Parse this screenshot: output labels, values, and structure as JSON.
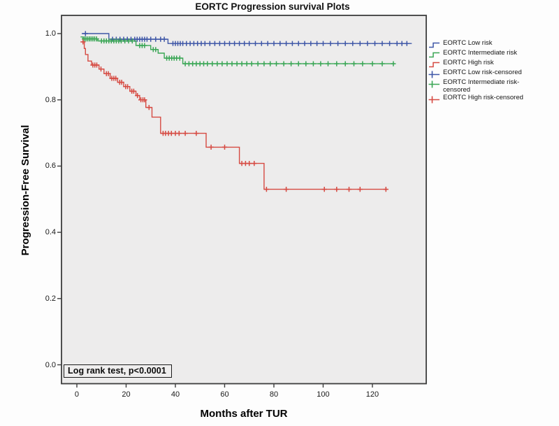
{
  "title": "EORTC Progression survival Plots",
  "y_axis": {
    "label": "Progression-Free Survival",
    "tick_labels": [
      "1.0",
      "0.8",
      "0.6",
      "0.4",
      "0.2",
      "0.0"
    ]
  },
  "x_axis": {
    "label": "Months after TUR",
    "tick_labels": [
      "0",
      "20",
      "40",
      "60",
      "80",
      "100",
      "120"
    ]
  },
  "annotation": {
    "text": "Log rank test, p<0.0001"
  },
  "colors": {
    "low_risk": "#3f57a7",
    "intermediate_risk": "#3aa655",
    "high_risk": "#d64a42",
    "plot_background": "#edecec",
    "frame": "#3d3d3d",
    "text": "#000000"
  },
  "legend": {
    "items": [
      {
        "label": "EORTC Low risk",
        "color": "#3f57a7",
        "glyph": "step-line"
      },
      {
        "label": "EORTC Intermediate risk",
        "color": "#3aa655",
        "glyph": "step-line"
      },
      {
        "label": "EORTC High risk",
        "color": "#d64a42",
        "glyph": "step-line"
      },
      {
        "label": "EORTC Low risk-censored",
        "color": "#3f57a7",
        "glyph": "censor-plus"
      },
      {
        "label": "EORTC Intermediate risk-censored",
        "color": "#3aa655",
        "glyph": "censor-plus"
      },
      {
        "label": "EORTC High risk-censored",
        "color": "#d64a42",
        "glyph": "censor-plus"
      }
    ]
  },
  "chart_data": {
    "type": "line",
    "subtype": "kaplan-meier-step",
    "title": "EORTC Progression survival Plots",
    "xlabel": "Months after TUR",
    "ylabel": "Progression-Free Survival",
    "xlim": [
      -6.24,
      141.86
    ],
    "ylim": [
      -0.057,
      1.055
    ],
    "x_ticks": [
      0,
      20,
      40,
      60,
      80,
      100,
      120
    ],
    "y_ticks": [
      1.0,
      0.8,
      0.6,
      0.4,
      0.2,
      0.0
    ],
    "grid": false,
    "legend_position": "right",
    "annotation": "Log rank test, p<0.0001",
    "series": [
      {
        "name": "EORTC Low risk",
        "color": "#3f57a7",
        "steps": [
          [
            2,
            1.0
          ],
          [
            13,
            1.0
          ],
          [
            13,
            0.983
          ],
          [
            37,
            0.983
          ],
          [
            37,
            0.97
          ],
          [
            136,
            0.97
          ]
        ],
        "censored": [
          [
            3.5,
            1.0
          ],
          [
            14.5,
            0.983
          ],
          [
            16,
            0.983
          ],
          [
            17.5,
            0.983
          ],
          [
            19,
            0.983
          ],
          [
            20.5,
            0.983
          ],
          [
            22,
            0.983
          ],
          [
            23.5,
            0.983
          ],
          [
            24.5,
            0.983
          ],
          [
            25.5,
            0.983
          ],
          [
            26.5,
            0.983
          ],
          [
            27.5,
            0.983
          ],
          [
            28.5,
            0.983
          ],
          [
            30,
            0.983
          ],
          [
            32,
            0.983
          ],
          [
            34,
            0.983
          ],
          [
            35.5,
            0.983
          ],
          [
            39,
            0.97
          ],
          [
            40,
            0.97
          ],
          [
            41,
            0.97
          ],
          [
            42,
            0.97
          ],
          [
            43,
            0.97
          ],
          [
            44.5,
            0.97
          ],
          [
            46,
            0.97
          ],
          [
            47.5,
            0.97
          ],
          [
            49,
            0.97
          ],
          [
            50.5,
            0.97
          ],
          [
            52,
            0.97
          ],
          [
            54,
            0.97
          ],
          [
            56,
            0.97
          ],
          [
            58,
            0.97
          ],
          [
            60,
            0.97
          ],
          [
            62,
            0.97
          ],
          [
            64,
            0.97
          ],
          [
            66,
            0.97
          ],
          [
            68,
            0.97
          ],
          [
            70,
            0.97
          ],
          [
            72.5,
            0.97
          ],
          [
            75,
            0.97
          ],
          [
            77.5,
            0.97
          ],
          [
            80,
            0.97
          ],
          [
            82.5,
            0.97
          ],
          [
            85,
            0.97
          ],
          [
            87.5,
            0.97
          ],
          [
            90,
            0.97
          ],
          [
            92.5,
            0.97
          ],
          [
            95,
            0.97
          ],
          [
            97.5,
            0.97
          ],
          [
            100,
            0.97
          ],
          [
            103,
            0.97
          ],
          [
            106,
            0.97
          ],
          [
            109,
            0.97
          ],
          [
            112,
            0.97
          ],
          [
            115,
            0.97
          ],
          [
            118,
            0.97
          ],
          [
            121,
            0.97
          ],
          [
            124,
            0.97
          ],
          [
            127,
            0.97
          ],
          [
            130,
            0.97
          ],
          [
            132,
            0.97
          ],
          [
            134,
            0.97
          ]
        ]
      },
      {
        "name": "EORTC Intermediate risk",
        "color": "#3aa655",
        "steps": [
          [
            1.5,
            0.99
          ],
          [
            2.5,
            0.99
          ],
          [
            2.5,
            0.984
          ],
          [
            8.5,
            0.984
          ],
          [
            8.5,
            0.978
          ],
          [
            24,
            0.978
          ],
          [
            24,
            0.964
          ],
          [
            30,
            0.964
          ],
          [
            30,
            0.952
          ],
          [
            33,
            0.952
          ],
          [
            33,
            0.941
          ],
          [
            35.5,
            0.941
          ],
          [
            35.5,
            0.926
          ],
          [
            43,
            0.926
          ],
          [
            43,
            0.909
          ],
          [
            129,
            0.909
          ]
        ],
        "censored": [
          [
            3,
            0.984
          ],
          [
            3.7,
            0.984
          ],
          [
            4.4,
            0.984
          ],
          [
            5.1,
            0.984
          ],
          [
            5.8,
            0.984
          ],
          [
            6.5,
            0.984
          ],
          [
            7.2,
            0.984
          ],
          [
            8,
            0.984
          ],
          [
            10,
            0.978
          ],
          [
            11,
            0.978
          ],
          [
            12,
            0.978
          ],
          [
            13,
            0.978
          ],
          [
            14,
            0.978
          ],
          [
            15,
            0.978
          ],
          [
            16,
            0.978
          ],
          [
            17,
            0.978
          ],
          [
            18,
            0.978
          ],
          [
            19.5,
            0.978
          ],
          [
            21,
            0.978
          ],
          [
            22.5,
            0.978
          ],
          [
            25.5,
            0.964
          ],
          [
            26.5,
            0.964
          ],
          [
            27.5,
            0.964
          ],
          [
            31,
            0.952
          ],
          [
            32,
            0.952
          ],
          [
            36.5,
            0.926
          ],
          [
            37.5,
            0.926
          ],
          [
            38.5,
            0.926
          ],
          [
            39.5,
            0.926
          ],
          [
            40.5,
            0.926
          ],
          [
            41.8,
            0.926
          ],
          [
            44,
            0.909
          ],
          [
            45.5,
            0.909
          ],
          [
            47,
            0.909
          ],
          [
            48.5,
            0.909
          ],
          [
            50,
            0.909
          ],
          [
            51.5,
            0.909
          ],
          [
            53,
            0.909
          ],
          [
            55,
            0.909
          ],
          [
            57,
            0.909
          ],
          [
            59,
            0.909
          ],
          [
            61,
            0.909
          ],
          [
            63,
            0.909
          ],
          [
            65,
            0.909
          ],
          [
            67,
            0.909
          ],
          [
            69,
            0.909
          ],
          [
            71,
            0.909
          ],
          [
            73.5,
            0.909
          ],
          [
            76,
            0.909
          ],
          [
            78.5,
            0.909
          ],
          [
            81,
            0.909
          ],
          [
            84,
            0.909
          ],
          [
            87,
            0.909
          ],
          [
            90,
            0.909
          ],
          [
            93,
            0.909
          ],
          [
            96,
            0.909
          ],
          [
            99,
            0.909
          ],
          [
            102,
            0.909
          ],
          [
            105.5,
            0.909
          ],
          [
            109,
            0.909
          ],
          [
            112.5,
            0.909
          ],
          [
            116,
            0.909
          ],
          [
            120,
            0.909
          ],
          [
            124,
            0.909
          ],
          [
            128.5,
            0.909
          ]
        ]
      },
      {
        "name": "EORTC High risk",
        "color": "#d64a42",
        "steps": [
          [
            2,
            0.975
          ],
          [
            3,
            0.975
          ],
          [
            3,
            0.955
          ],
          [
            3.5,
            0.955
          ],
          [
            3.5,
            0.937
          ],
          [
            4.5,
            0.937
          ],
          [
            4.5,
            0.917
          ],
          [
            6,
            0.917
          ],
          [
            6,
            0.905
          ],
          [
            9,
            0.905
          ],
          [
            9,
            0.893
          ],
          [
            11,
            0.893
          ],
          [
            11,
            0.879
          ],
          [
            13.5,
            0.879
          ],
          [
            13.5,
            0.865
          ],
          [
            16.5,
            0.865
          ],
          [
            16.5,
            0.853
          ],
          [
            19,
            0.853
          ],
          [
            19,
            0.84
          ],
          [
            21.5,
            0.84
          ],
          [
            21.5,
            0.826
          ],
          [
            24,
            0.826
          ],
          [
            24,
            0.813
          ],
          [
            25.5,
            0.813
          ],
          [
            25.5,
            0.8
          ],
          [
            28,
            0.8
          ],
          [
            28,
            0.777
          ],
          [
            30.5,
            0.777
          ],
          [
            30.5,
            0.748
          ],
          [
            34,
            0.748
          ],
          [
            34,
            0.699
          ],
          [
            52.5,
            0.699
          ],
          [
            52.5,
            0.657
          ],
          [
            66,
            0.657
          ],
          [
            66,
            0.608
          ],
          [
            76,
            0.608
          ],
          [
            76,
            0.53
          ],
          [
            126,
            0.53
          ]
        ],
        "censored": [
          [
            2.5,
            0.975
          ],
          [
            6.5,
            0.905
          ],
          [
            7.3,
            0.905
          ],
          [
            8.1,
            0.905
          ],
          [
            9.8,
            0.893
          ],
          [
            12,
            0.879
          ],
          [
            12.8,
            0.879
          ],
          [
            14.2,
            0.865
          ],
          [
            15,
            0.865
          ],
          [
            15.8,
            0.865
          ],
          [
            17.4,
            0.853
          ],
          [
            18.2,
            0.853
          ],
          [
            19.8,
            0.84
          ],
          [
            20.6,
            0.84
          ],
          [
            22.3,
            0.826
          ],
          [
            23.1,
            0.826
          ],
          [
            24.6,
            0.813
          ],
          [
            26,
            0.8
          ],
          [
            26.8,
            0.8
          ],
          [
            27.5,
            0.8
          ],
          [
            29.3,
            0.777
          ],
          [
            35,
            0.699
          ],
          [
            36,
            0.699
          ],
          [
            37.2,
            0.699
          ],
          [
            38.4,
            0.699
          ],
          [
            40,
            0.699
          ],
          [
            41.5,
            0.699
          ],
          [
            44,
            0.699
          ],
          [
            48.5,
            0.699
          ],
          [
            54.5,
            0.657
          ],
          [
            60,
            0.657
          ],
          [
            67,
            0.608
          ],
          [
            68.5,
            0.608
          ],
          [
            70,
            0.608
          ],
          [
            72,
            0.608
          ],
          [
            77,
            0.53
          ],
          [
            85,
            0.53
          ],
          [
            100.5,
            0.53
          ],
          [
            105.5,
            0.53
          ],
          [
            110.5,
            0.53
          ],
          [
            115,
            0.53
          ],
          [
            125.5,
            0.53
          ]
        ]
      }
    ]
  }
}
